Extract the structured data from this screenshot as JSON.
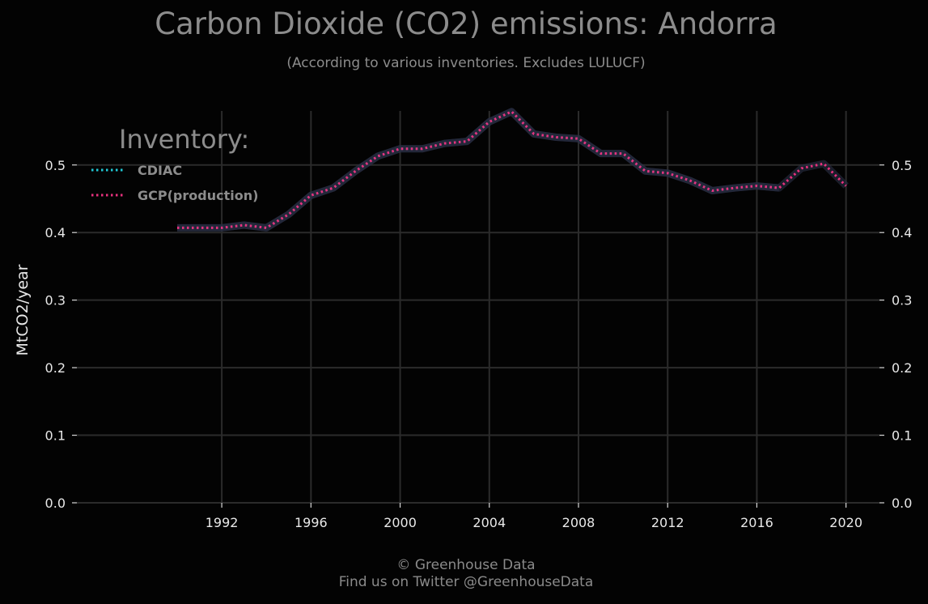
{
  "title": "Carbon Dioxide (CO2) emissions: Andorra",
  "subtitle": "(According to various inventories. Excludes LULUCF)",
  "footer": {
    "line1": "© Greenhouse Data",
    "line2": "Find us on Twitter @GreenhouseData"
  },
  "chart_data": {
    "type": "line",
    "title": "Carbon Dioxide (CO2) emissions: Andorra",
    "subtitle": "(According to various inventories. Excludes LULUCF)",
    "xlabel": "",
    "ylabel": "MtCO2/year",
    "xlim": [
      1985.5,
      2021.5
    ],
    "ylim": [
      0.0,
      0.58
    ],
    "x_ticks": [
      1992,
      1996,
      2000,
      2004,
      2008,
      2012,
      2016,
      2020
    ],
    "y_ticks": [
      0.0,
      0.1,
      0.2,
      0.3,
      0.4,
      0.5
    ],
    "grid": true,
    "legend": {
      "title": "Inventory:",
      "placement": "top-left"
    },
    "series": [
      {
        "name": "CDIAC",
        "color": "#1fc8d6",
        "style": "dotted",
        "x": [
          1990,
          1991,
          1992,
          1993,
          1994,
          1995,
          1996,
          1997,
          1998,
          1999,
          2000,
          2001,
          2002,
          2003,
          2004,
          2005,
          2006,
          2007,
          2008,
          2009,
          2010,
          2011,
          2012,
          2013,
          2014,
          2015,
          2016,
          2017
        ],
        "values": [
          0.407,
          0.407,
          0.407,
          0.411,
          0.407,
          0.427,
          0.455,
          0.466,
          0.491,
          0.513,
          0.524,
          0.524,
          0.532,
          0.535,
          0.564,
          0.579,
          0.546,
          0.541,
          0.539,
          0.517,
          0.517,
          0.491,
          0.488,
          0.477,
          0.462,
          0.466,
          0.469,
          0.466
        ]
      },
      {
        "name": "GCP(production)",
        "color": "#e8317e",
        "style": "dotted",
        "x": [
          1990,
          1991,
          1992,
          1993,
          1994,
          1995,
          1996,
          1997,
          1998,
          1999,
          2000,
          2001,
          2002,
          2003,
          2004,
          2005,
          2006,
          2007,
          2008,
          2009,
          2010,
          2011,
          2012,
          2013,
          2014,
          2015,
          2016,
          2017,
          2018,
          2019,
          2020
        ],
        "values": [
          0.407,
          0.407,
          0.407,
          0.411,
          0.407,
          0.427,
          0.455,
          0.466,
          0.491,
          0.513,
          0.524,
          0.524,
          0.532,
          0.535,
          0.564,
          0.579,
          0.546,
          0.541,
          0.539,
          0.517,
          0.517,
          0.491,
          0.488,
          0.477,
          0.462,
          0.466,
          0.469,
          0.466,
          0.495,
          0.502,
          0.469
        ]
      }
    ]
  }
}
